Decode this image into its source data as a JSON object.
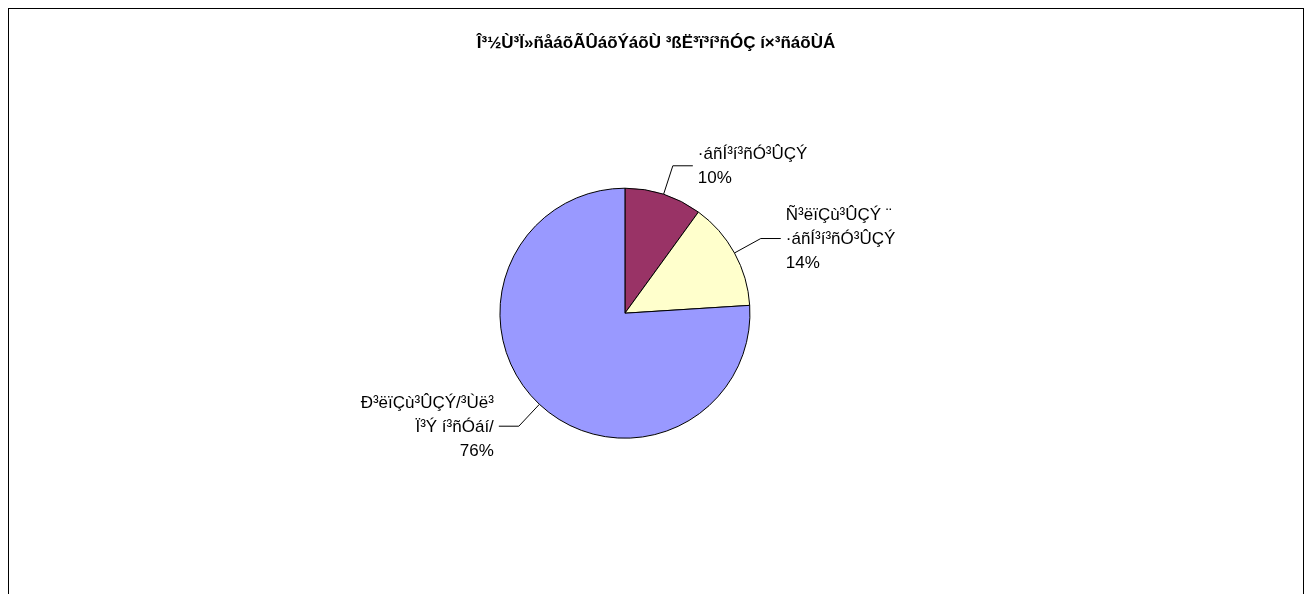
{
  "chart_data": {
    "type": "pie",
    "title": "Î³½Ù³Ï»ñåáõÃÛáõÝáõÙ ³ßË³ï³í³ñÓÇ í×³ñáõÙÁ",
    "categories": [
      "·áñÍ³í³ñÓ³ÛÇÝ",
      "Ñ³ëïÇù³ÛÇÝ ¨\n·áñÍ³í³ñÓ³ÛÇÝ",
      "Ð³ëïÇù³ÛÇÝ/³Ùë³\nÏ³Ý í³ñÓáí/"
    ],
    "values": [
      10,
      14,
      76
    ],
    "value_labels": [
      "10%",
      "14%",
      "76%"
    ],
    "colors": [
      "#993366",
      "#ffffcc",
      "#9999ff"
    ]
  }
}
